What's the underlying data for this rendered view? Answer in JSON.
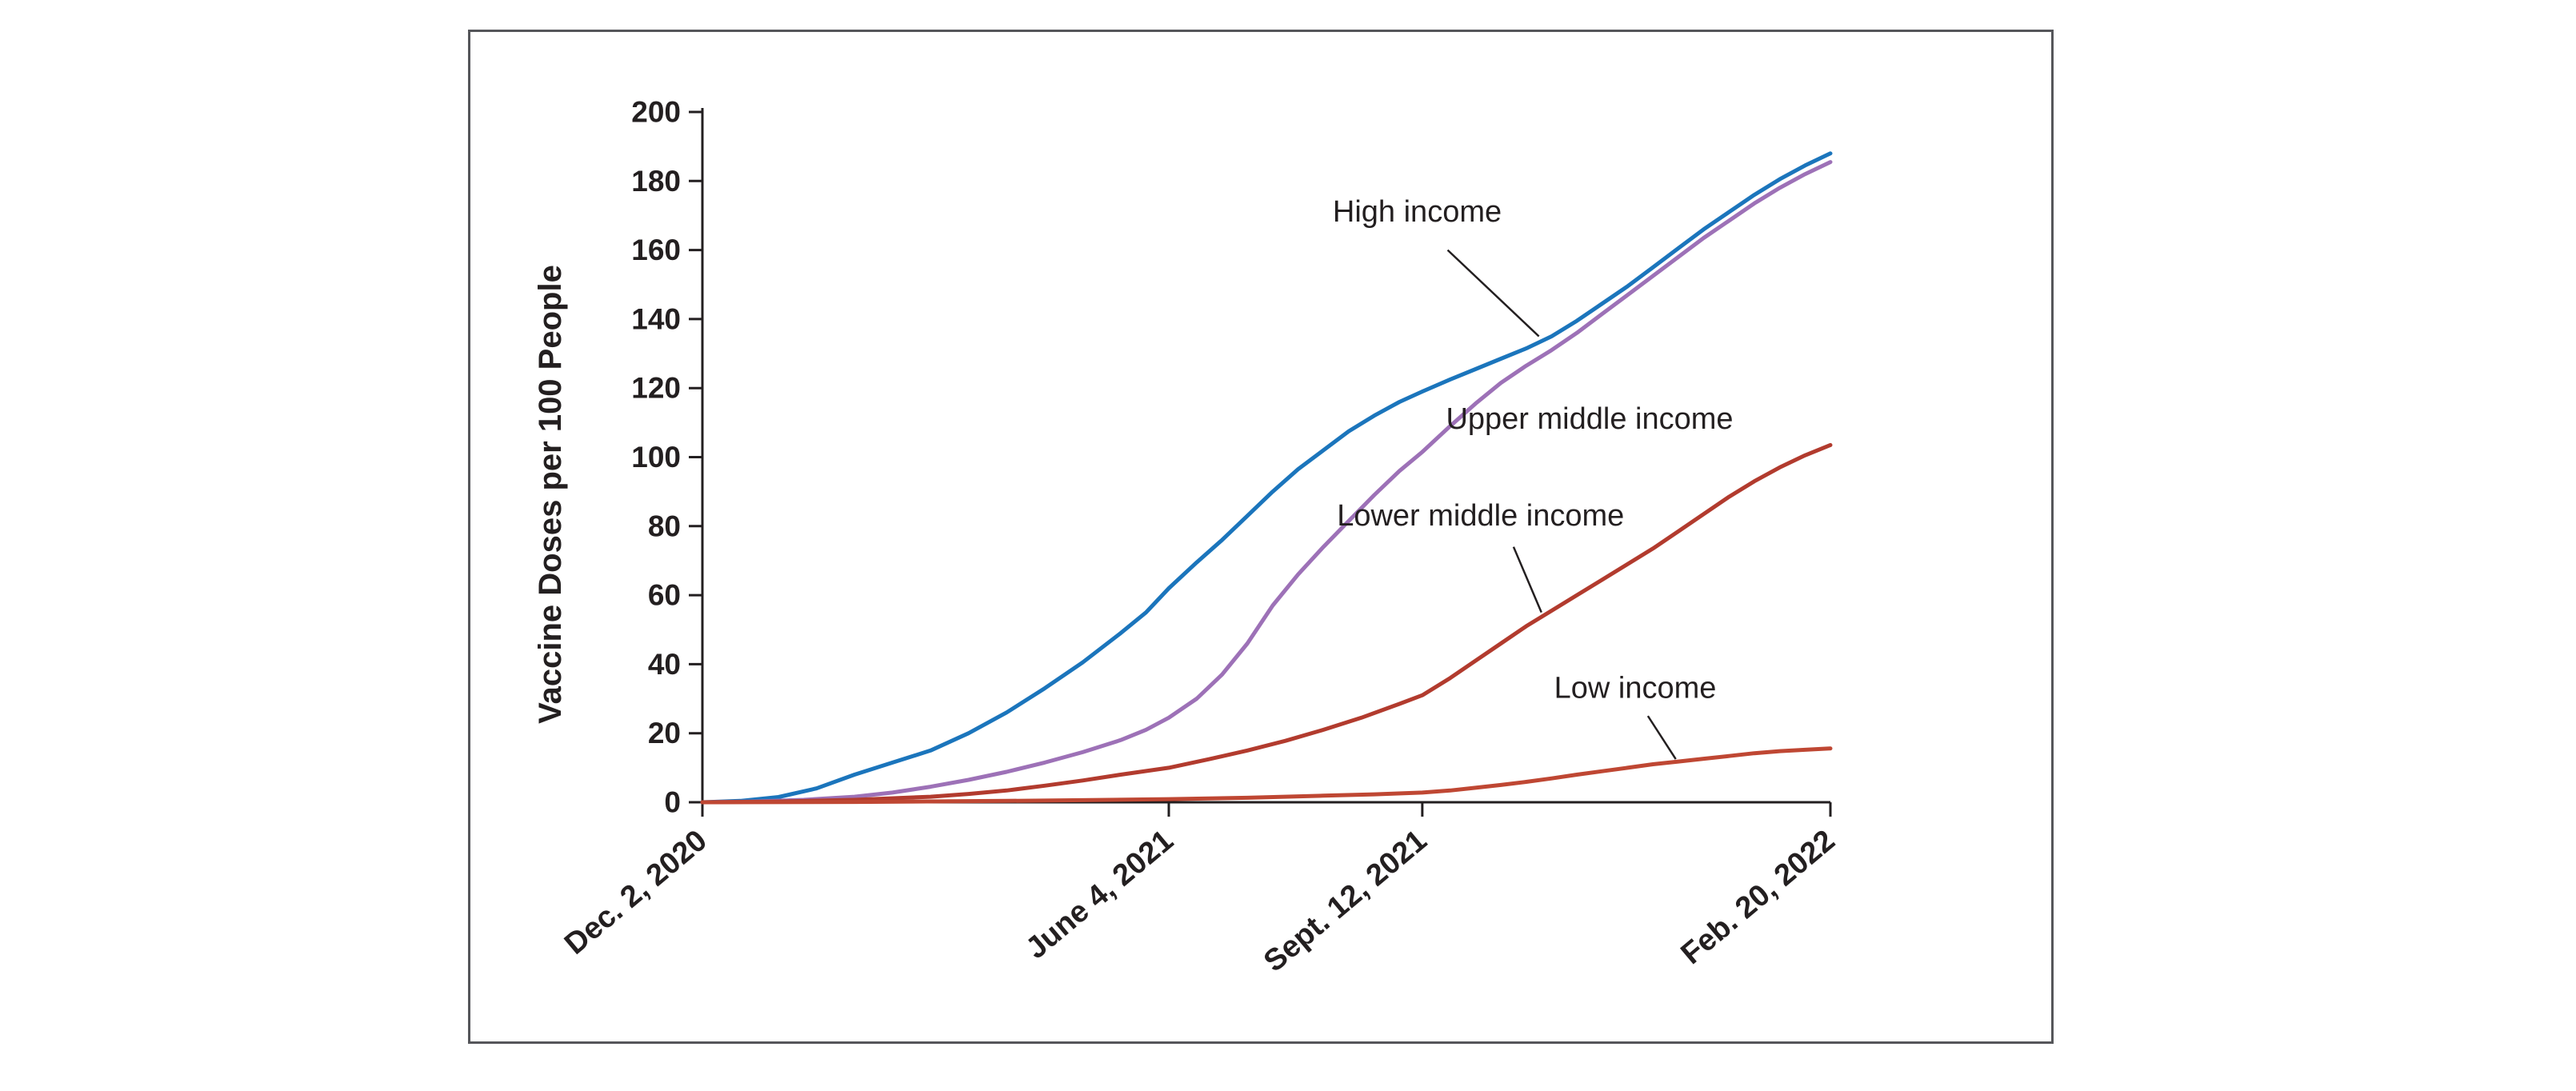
{
  "figure": {
    "background": "#ffffff",
    "panel_border_color": "#55565a",
    "axis_color": "#231f20",
    "text_color": "#231f20"
  },
  "chart_data": {
    "type": "line",
    "title": "",
    "xlabel": "",
    "ylabel": "Vaccine Doses per 100 People",
    "ylim": [
      0,
      200
    ],
    "ytick_interval": 20,
    "yticks": [
      0,
      20,
      40,
      60,
      80,
      100,
      120,
      140,
      160,
      180,
      200
    ],
    "x_unit": "days since Dec. 2, 2020",
    "x_range_days": [
      0,
      445
    ],
    "grid": false,
    "legend": "inline labels with leader lines",
    "xticks": [
      {
        "day": 0,
        "label": "Dec. 2, 2020"
      },
      {
        "day": 184,
        "label": "June 4, 2021"
      },
      {
        "day": 284,
        "label": "Sept. 12, 2021"
      },
      {
        "day": 445,
        "label": "Feb. 20, 2022"
      }
    ],
    "series": [
      {
        "name": "High income",
        "color": "#1b75bc",
        "points": [
          [
            0,
            0
          ],
          [
            15,
            0.4
          ],
          [
            30,
            1.5
          ],
          [
            45,
            4
          ],
          [
            60,
            8
          ],
          [
            75,
            11.5
          ],
          [
            90,
            15
          ],
          [
            105,
            20
          ],
          [
            120,
            26
          ],
          [
            135,
            33
          ],
          [
            150,
            40.5
          ],
          [
            165,
            49
          ],
          [
            175,
            55
          ],
          [
            184,
            62
          ],
          [
            195,
            69.5
          ],
          [
            205,
            76
          ],
          [
            215,
            83
          ],
          [
            225,
            90
          ],
          [
            235,
            96.5
          ],
          [
            245,
            102
          ],
          [
            255,
            107.5
          ],
          [
            265,
            112
          ],
          [
            275,
            116
          ],
          [
            284,
            119
          ],
          [
            295,
            122.5
          ],
          [
            305,
            125.5
          ],
          [
            315,
            128.5
          ],
          [
            325,
            131.5
          ],
          [
            335,
            135
          ],
          [
            345,
            139.5
          ],
          [
            355,
            144.5
          ],
          [
            365,
            149.5
          ],
          [
            375,
            155
          ],
          [
            385,
            160.5
          ],
          [
            395,
            166
          ],
          [
            405,
            171
          ],
          [
            415,
            176
          ],
          [
            425,
            180.5
          ],
          [
            435,
            184.5
          ],
          [
            445,
            188
          ]
        ]
      },
      {
        "name": "Upper middle income",
        "color": "#9d71b7",
        "points": [
          [
            0,
            0
          ],
          [
            20,
            0.2
          ],
          [
            40,
            0.7
          ],
          [
            60,
            1.6
          ],
          [
            75,
            2.8
          ],
          [
            90,
            4.5
          ],
          [
            105,
            6.5
          ],
          [
            120,
            8.8
          ],
          [
            135,
            11.5
          ],
          [
            150,
            14.5
          ],
          [
            165,
            18
          ],
          [
            175,
            21
          ],
          [
            184,
            24.5
          ],
          [
            195,
            30
          ],
          [
            205,
            37
          ],
          [
            215,
            46
          ],
          [
            225,
            57
          ],
          [
            235,
            66
          ],
          [
            245,
            74
          ],
          [
            255,
            81.5
          ],
          [
            265,
            89
          ],
          [
            275,
            96
          ],
          [
            284,
            101.5
          ],
          [
            295,
            109
          ],
          [
            305,
            115.5
          ],
          [
            315,
            121.5
          ],
          [
            325,
            126.5
          ],
          [
            335,
            131
          ],
          [
            345,
            136
          ],
          [
            355,
            141.5
          ],
          [
            365,
            147
          ],
          [
            375,
            152.5
          ],
          [
            385,
            158
          ],
          [
            395,
            163.5
          ],
          [
            405,
            168.5
          ],
          [
            415,
            173.5
          ],
          [
            425,
            178
          ],
          [
            435,
            182
          ],
          [
            445,
            185.5
          ]
        ]
      },
      {
        "name": "Lower middle income",
        "color": "#b23b2e",
        "points": [
          [
            0,
            0
          ],
          [
            30,
            0.2
          ],
          [
            60,
            0.7
          ],
          [
            90,
            1.6
          ],
          [
            105,
            2.4
          ],
          [
            120,
            3.4
          ],
          [
            135,
            4.8
          ],
          [
            150,
            6.3
          ],
          [
            165,
            8
          ],
          [
            184,
            10
          ],
          [
            200,
            12.5
          ],
          [
            215,
            15
          ],
          [
            230,
            17.8
          ],
          [
            245,
            21
          ],
          [
            260,
            24.5
          ],
          [
            275,
            28.5
          ],
          [
            284,
            31
          ],
          [
            295,
            36
          ],
          [
            305,
            41
          ],
          [
            315,
            46
          ],
          [
            325,
            51
          ],
          [
            335,
            55.5
          ],
          [
            345,
            60
          ],
          [
            355,
            64.5
          ],
          [
            365,
            69
          ],
          [
            375,
            73.5
          ],
          [
            385,
            78.5
          ],
          [
            395,
            83.5
          ],
          [
            405,
            88.5
          ],
          [
            415,
            93
          ],
          [
            425,
            97
          ],
          [
            435,
            100.5
          ],
          [
            445,
            103.5
          ]
        ]
      },
      {
        "name": "Low income",
        "color": "#bf4733",
        "points": [
          [
            0,
            0
          ],
          [
            60,
            0.1
          ],
          [
            120,
            0.4
          ],
          [
            150,
            0.6
          ],
          [
            184,
            0.9
          ],
          [
            215,
            1.3
          ],
          [
            245,
            1.9
          ],
          [
            265,
            2.3
          ],
          [
            284,
            2.8
          ],
          [
            295,
            3.4
          ],
          [
            305,
            4.2
          ],
          [
            315,
            5
          ],
          [
            325,
            5.9
          ],
          [
            335,
            6.9
          ],
          [
            345,
            8
          ],
          [
            355,
            9
          ],
          [
            365,
            10
          ],
          [
            375,
            11
          ],
          [
            385,
            11.8
          ],
          [
            395,
            12.6
          ],
          [
            405,
            13.4
          ],
          [
            415,
            14.2
          ],
          [
            425,
            14.8
          ],
          [
            435,
            15.2
          ],
          [
            445,
            15.6
          ]
        ]
      }
    ],
    "annotations": [
      {
        "text": "High income",
        "text_day": 282,
        "text_value": 171,
        "anchor": "middle",
        "leader": {
          "from_day": 294,
          "from_value": 160,
          "to_day": 330,
          "to_value": 135
        }
      },
      {
        "text": "Upper middle income",
        "text_day": 350,
        "text_value": 111,
        "anchor": "middle",
        "leader": null
      },
      {
        "text": "Lower middle income",
        "text_day": 307,
        "text_value": 83,
        "anchor": "middle",
        "leader": {
          "from_day": 320,
          "from_value": 74,
          "to_day": 331,
          "to_value": 55
        }
      },
      {
        "text": "Low income",
        "text_day": 368,
        "text_value": 33,
        "anchor": "middle",
        "leader": {
          "from_day": 373,
          "from_value": 25,
          "to_day": 384,
          "to_value": 12.5
        }
      }
    ]
  }
}
